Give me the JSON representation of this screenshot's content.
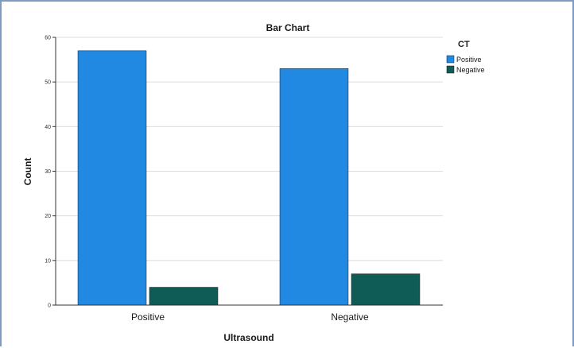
{
  "chart_data": {
    "type": "bar",
    "title": "Bar Chart",
    "xlabel": "Ultrasound",
    "ylabel": "Count",
    "categories": [
      "Positive",
      "Negative"
    ],
    "series": [
      {
        "name": "Positive",
        "values": [
          57,
          53
        ]
      },
      {
        "name": "Negative",
        "values": [
          4,
          7
        ]
      }
    ],
    "ylim": [
      0,
      60
    ],
    "yticks": [
      0,
      10,
      20,
      30,
      40,
      50,
      60
    ],
    "grid": true,
    "legend": {
      "title": "CT",
      "position": "top-right"
    },
    "colors": {
      "Positive": "#2289e3",
      "Negative": "#0f5b55"
    }
  }
}
